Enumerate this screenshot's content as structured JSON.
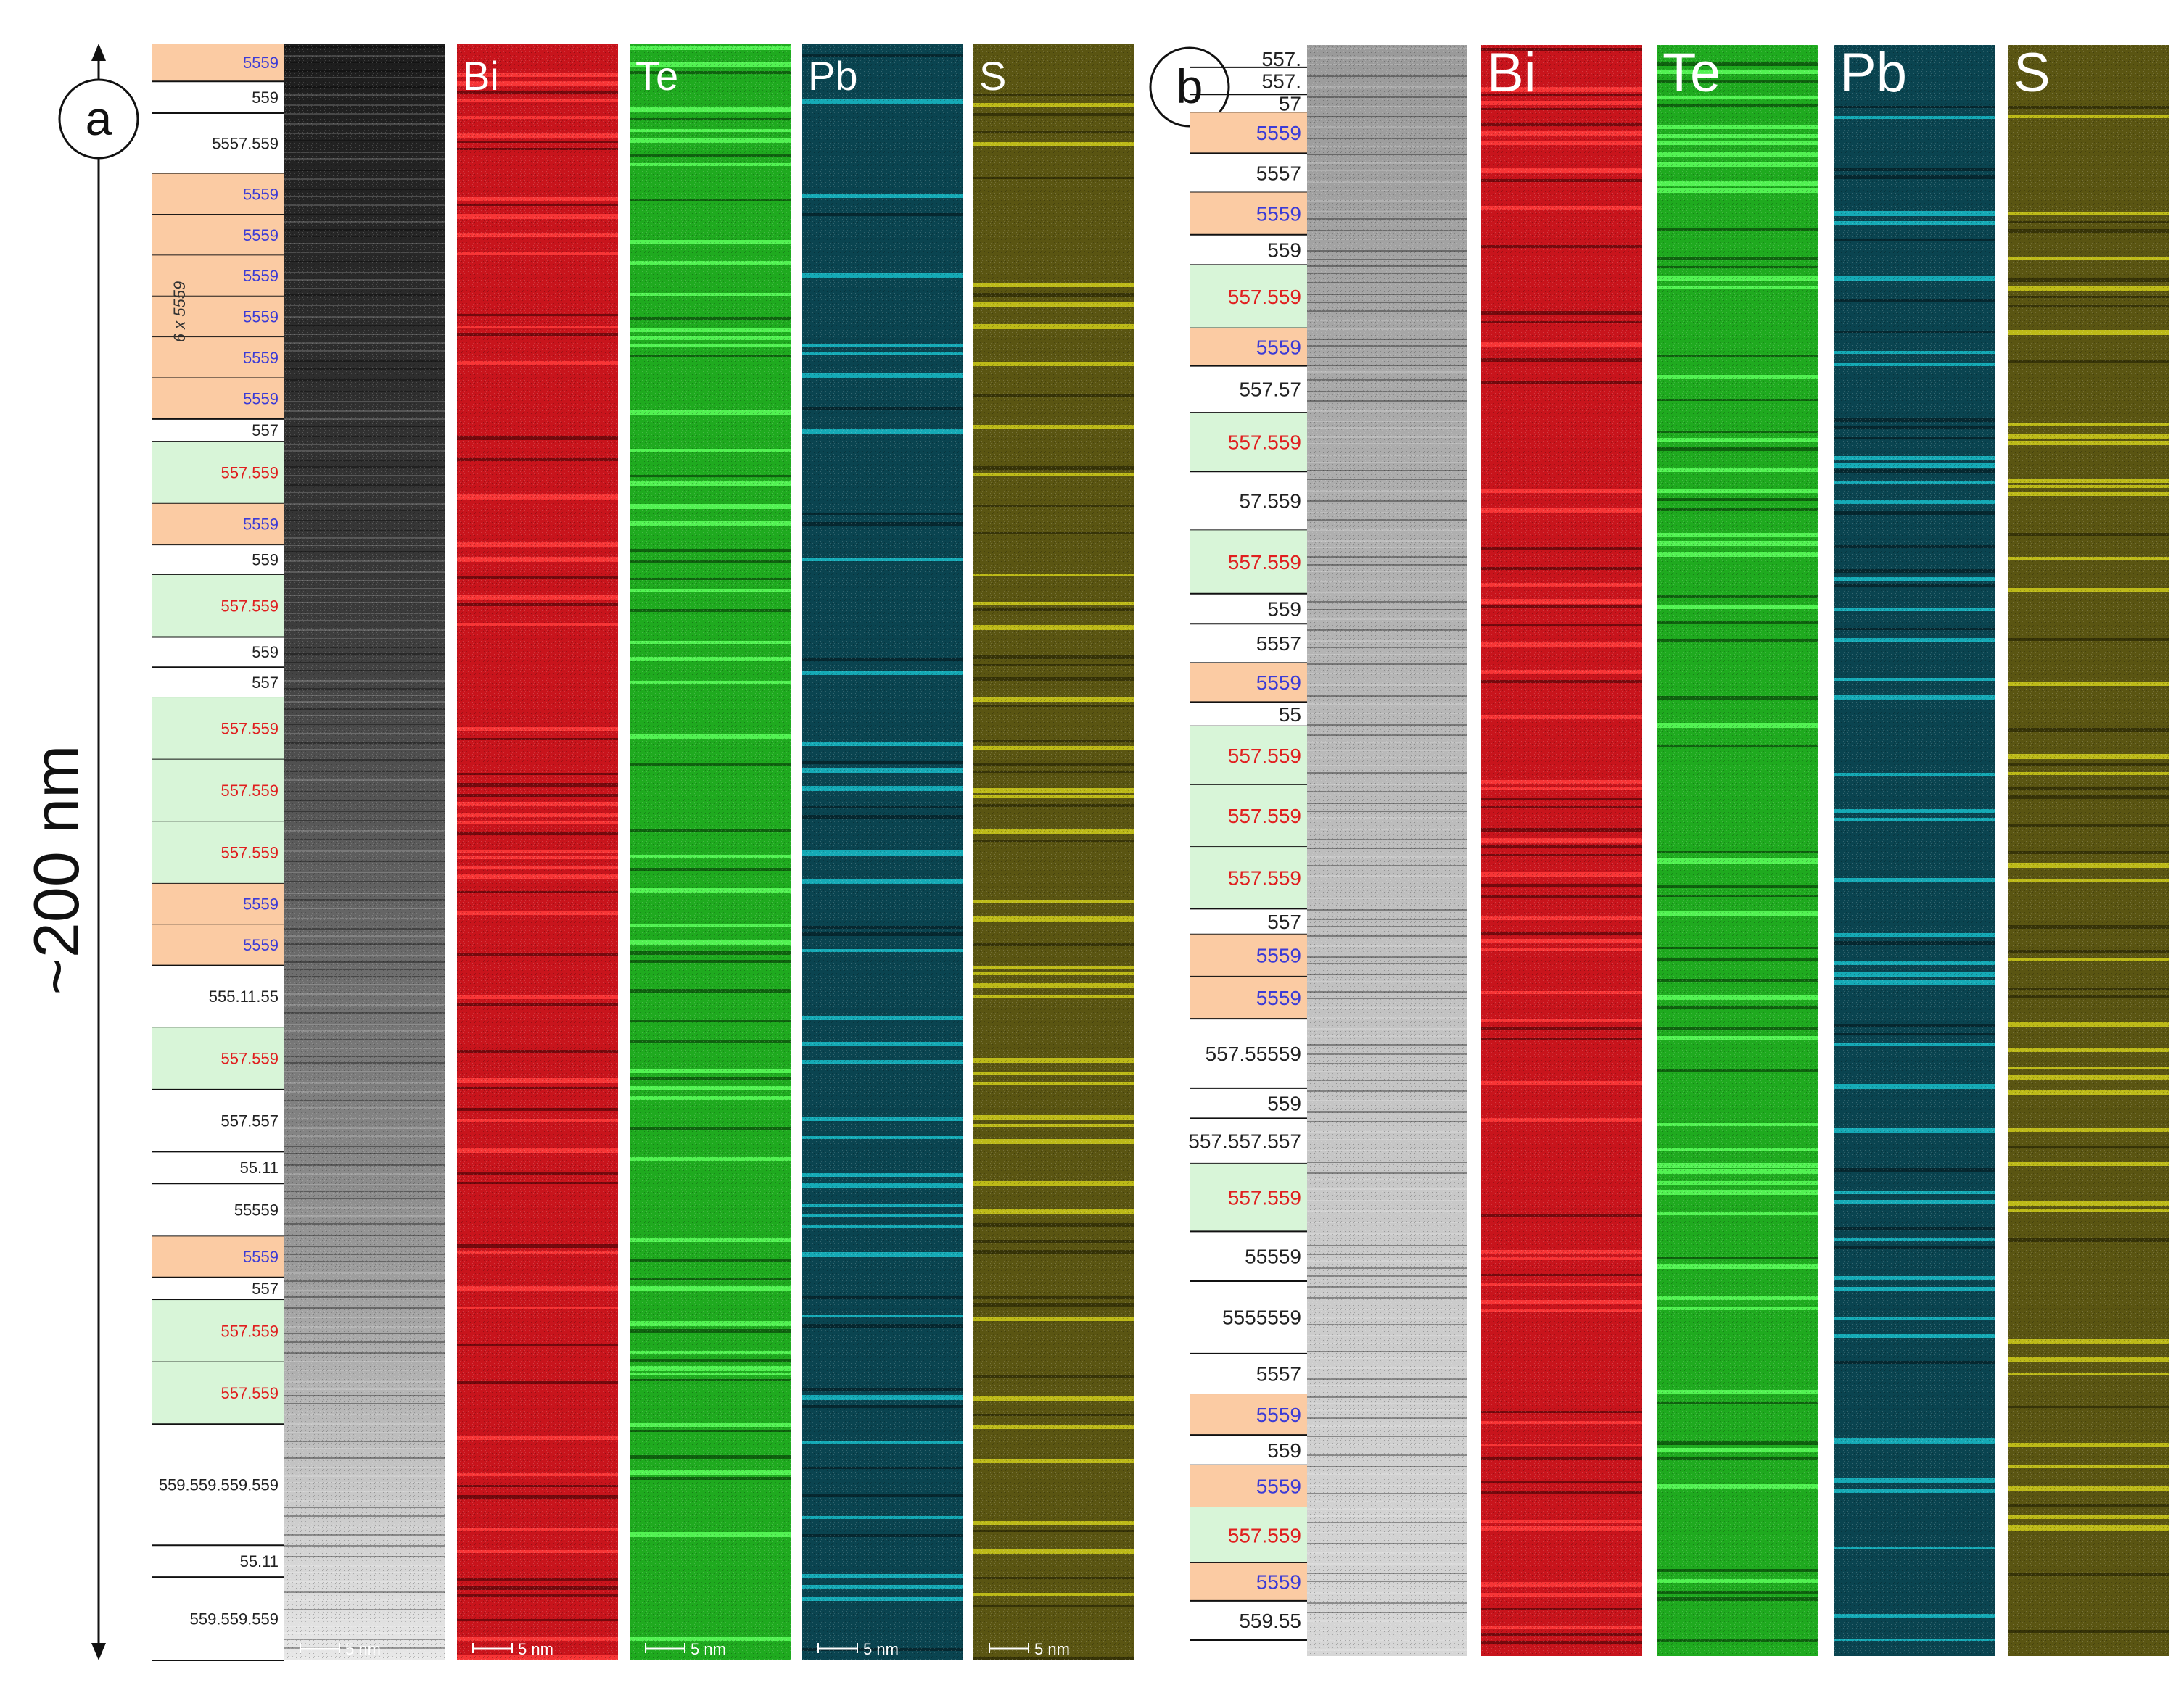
{
  "scale_label": "~200 nm",
  "colors": {
    "orange_block": "#fbcba3",
    "green_block": "#d8f5d8",
    "label_blue": "#3b3bd6",
    "label_red": "#e01f1f",
    "label_black": "#222222",
    "bi": "#c8141c",
    "te": "#1faa1f",
    "pb": "#18bcc8",
    "pb_bg": "#0a4450",
    "s": "#cfcc1a",
    "s_bg": "#5a5512"
  },
  "panel_a": {
    "letter": "a",
    "annotation_6x": "6 x 5559",
    "channels": [
      "Bi",
      "Te",
      "Pb",
      "S"
    ],
    "scale_bar": "5 nm",
    "layers": [
      {
        "text": "5559",
        "type": "orange"
      },
      {
        "text": "559",
        "type": "plain"
      },
      {
        "text": "5557.559",
        "type": "plain"
      },
      {
        "text": "5559",
        "type": "orange"
      },
      {
        "text": "5559",
        "type": "orange"
      },
      {
        "text": "5559",
        "type": "orange"
      },
      {
        "text": "5559",
        "type": "orange"
      },
      {
        "text": "5559",
        "type": "orange"
      },
      {
        "text": "5559",
        "type": "orange"
      },
      {
        "text": "557",
        "type": "plain"
      },
      {
        "text": "557.559",
        "type": "green"
      },
      {
        "text": "5559",
        "type": "orange"
      },
      {
        "text": "559",
        "type": "plain"
      },
      {
        "text": "557.559",
        "type": "green"
      },
      {
        "text": "559",
        "type": "plain"
      },
      {
        "text": "557",
        "type": "plain"
      },
      {
        "text": "557.559",
        "type": "green"
      },
      {
        "text": "557.559",
        "type": "green"
      },
      {
        "text": "557.559",
        "type": "green"
      },
      {
        "text": "5559",
        "type": "orange"
      },
      {
        "text": "5559",
        "type": "orange"
      },
      {
        "text": "555.11.55",
        "type": "plain"
      },
      {
        "text": "557.559",
        "type": "green"
      },
      {
        "text": "557.557",
        "type": "plain"
      },
      {
        "text": "55.11",
        "type": "plain"
      },
      {
        "text": "55559",
        "type": "plain"
      },
      {
        "text": "5559",
        "type": "orange"
      },
      {
        "text": "557",
        "type": "plain"
      },
      {
        "text": "557.559",
        "type": "green"
      },
      {
        "text": "557.559",
        "type": "green"
      },
      {
        "text": "559.559.559.559",
        "type": "plain"
      },
      {
        "text": "55.11",
        "type": "plain"
      },
      {
        "text": "559.559.559",
        "type": "plain"
      }
    ]
  },
  "panel_b": {
    "letter": "b",
    "channels": [
      "Bi",
      "Te",
      "Pb",
      "S"
    ],
    "layers": [
      {
        "text": "557.",
        "type": "plain"
      },
      {
        "text": "557.",
        "type": "plain"
      },
      {
        "text": "57",
        "type": "plain"
      },
      {
        "text": "5559",
        "type": "orange"
      },
      {
        "text": "5557",
        "type": "plain"
      },
      {
        "text": "5559",
        "type": "orange"
      },
      {
        "text": "559",
        "type": "plain"
      },
      {
        "text": "557.559",
        "type": "green"
      },
      {
        "text": "5559",
        "type": "orange"
      },
      {
        "text": "557.57",
        "type": "plain"
      },
      {
        "text": "557.559",
        "type": "green"
      },
      {
        "text": "57.559",
        "type": "plain"
      },
      {
        "text": "557.559",
        "type": "green"
      },
      {
        "text": "559",
        "type": "plain"
      },
      {
        "text": "5557",
        "type": "plain"
      },
      {
        "text": "5559",
        "type": "orange"
      },
      {
        "text": "55",
        "type": "plain"
      },
      {
        "text": "557.559",
        "type": "green"
      },
      {
        "text": "557.559",
        "type": "green"
      },
      {
        "text": "557.559",
        "type": "green"
      },
      {
        "text": "557",
        "type": "plain"
      },
      {
        "text": "5559",
        "type": "orange"
      },
      {
        "text": "5559",
        "type": "orange"
      },
      {
        "text": "557.55559",
        "type": "plain"
      },
      {
        "text": "559",
        "type": "plain"
      },
      {
        "text": "557.557.557",
        "type": "plain"
      },
      {
        "text": "557.559",
        "type": "green"
      },
      {
        "text": "55559",
        "type": "plain"
      },
      {
        "text": "5555559",
        "type": "plain"
      },
      {
        "text": "5557",
        "type": "plain"
      },
      {
        "text": "5559",
        "type": "orange"
      },
      {
        "text": "559",
        "type": "plain"
      },
      {
        "text": "5559",
        "type": "orange"
      },
      {
        "text": "557.559",
        "type": "green"
      },
      {
        "text": "5559",
        "type": "orange"
      },
      {
        "text": "559.55",
        "type": "plain"
      }
    ]
  }
}
